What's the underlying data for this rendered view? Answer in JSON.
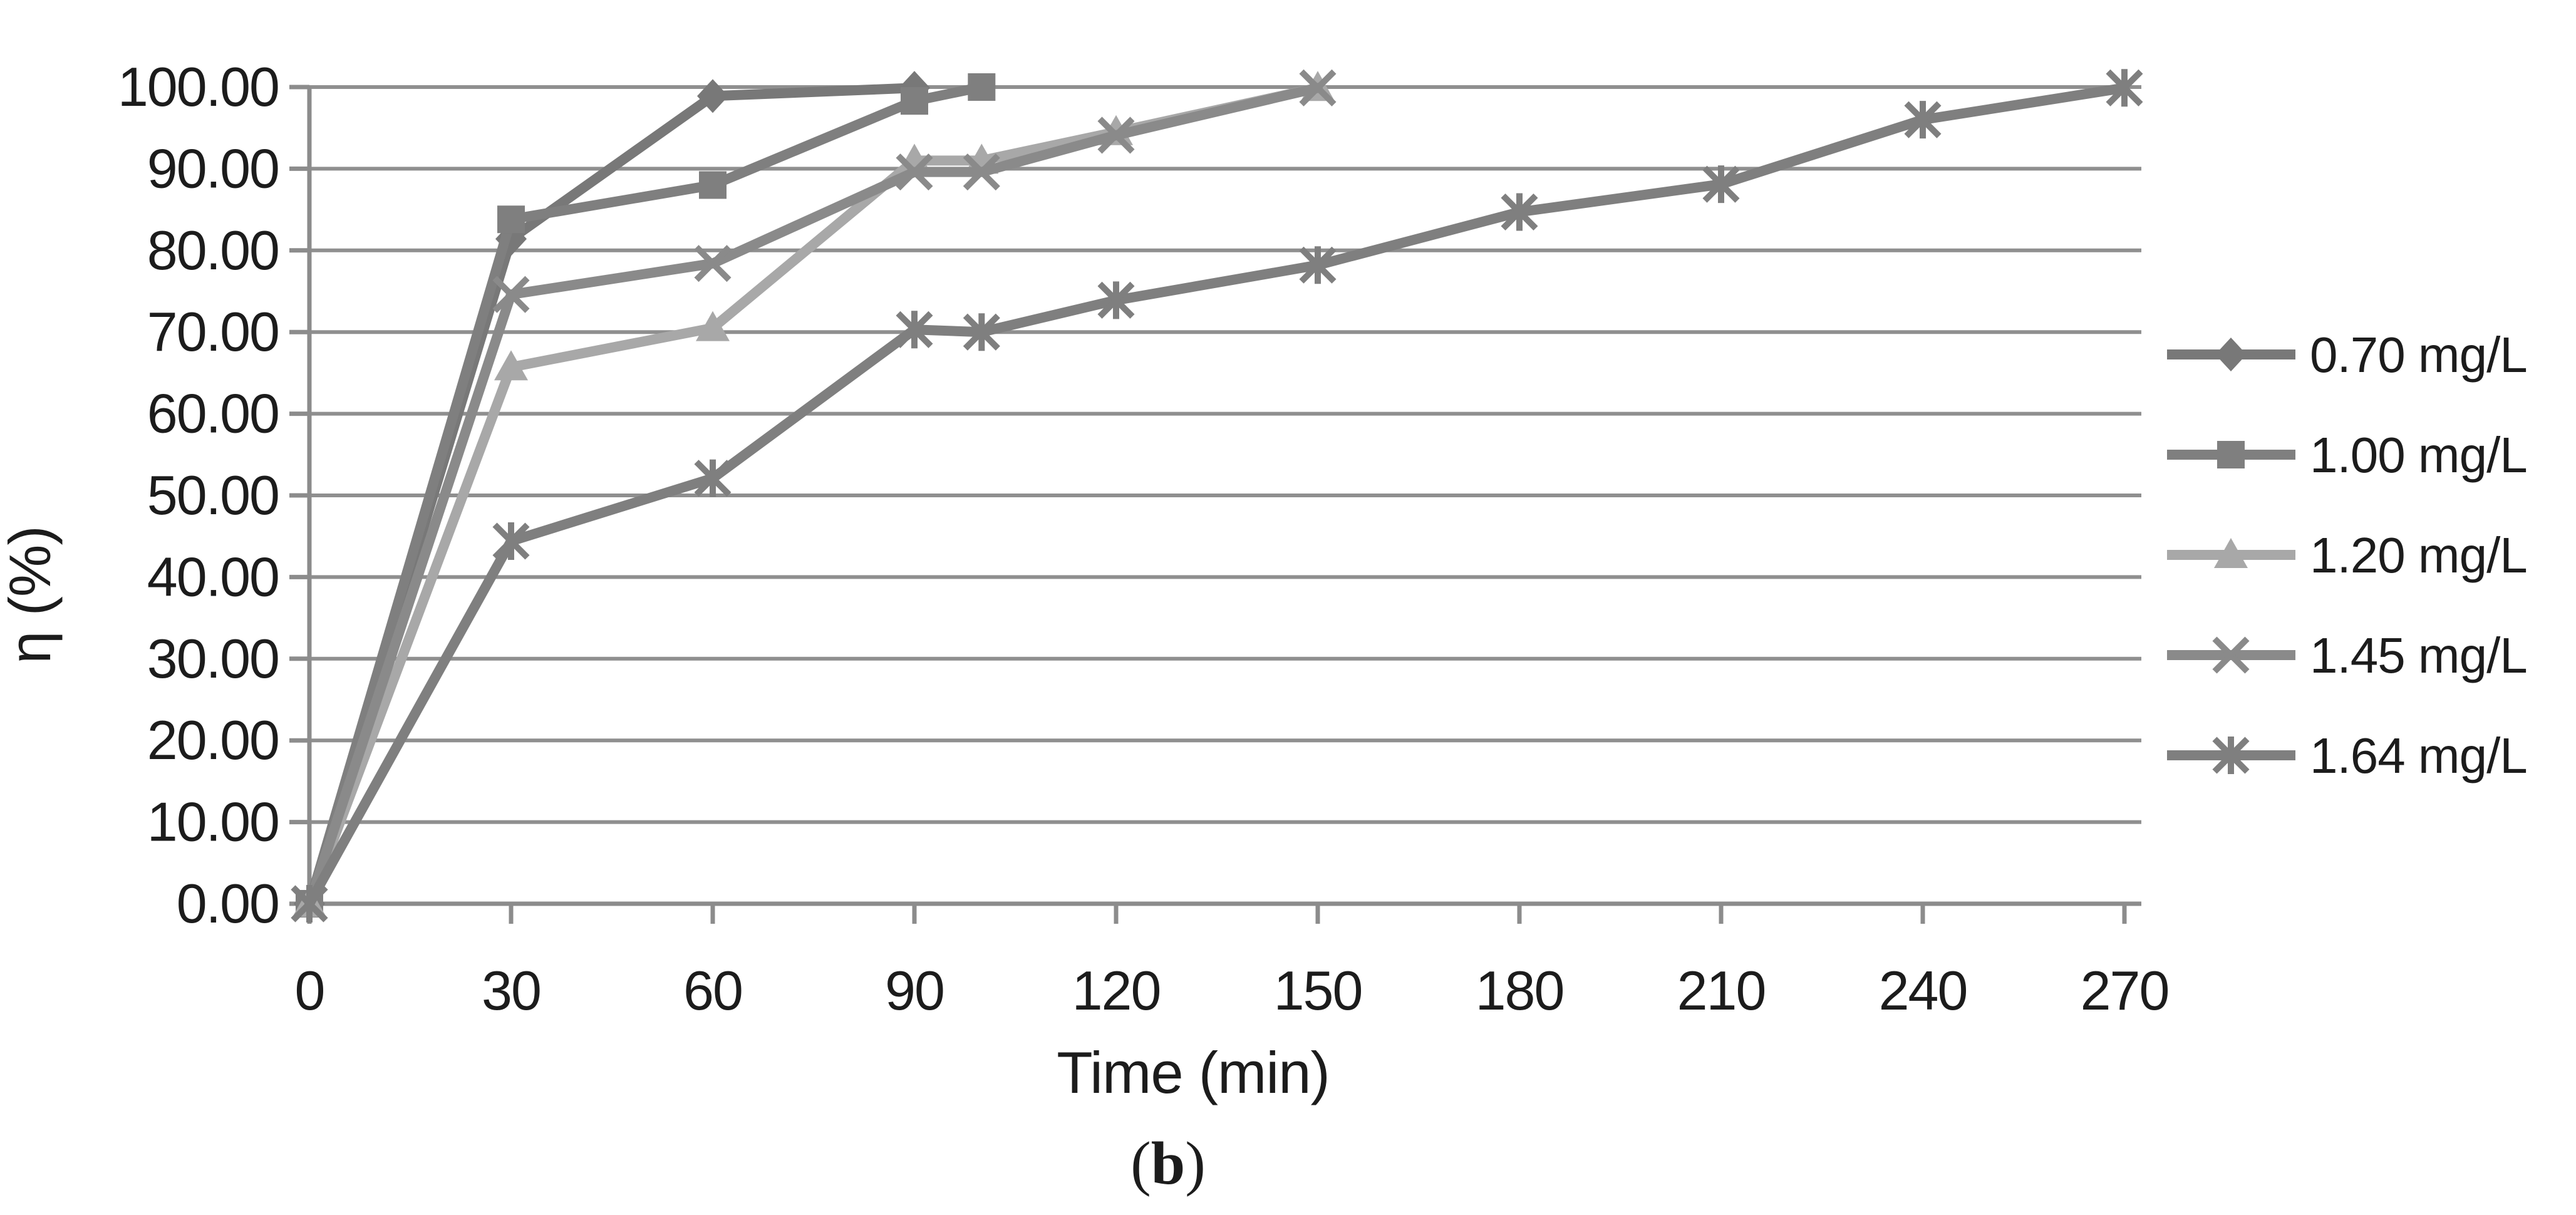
{
  "figure": {
    "caption": {
      "open": "(",
      "letter": "b",
      "close": ")"
    }
  },
  "chart_data": {
    "type": "line",
    "title": "",
    "xlabel": "Time (min)",
    "ylabel": "η (%)",
    "x_axis": {
      "min": 0,
      "max": 270,
      "tick_values": [
        0,
        30,
        60,
        90,
        120,
        150,
        180,
        210,
        240,
        270
      ],
      "tick_labels": [
        "0",
        "30",
        "60",
        "90",
        "120",
        "150",
        "180",
        "210",
        "240",
        "270"
      ]
    },
    "y_axis": {
      "min": 0,
      "max": 100,
      "step": 10,
      "tick_labels": [
        "0.00",
        "10.00",
        "20.00",
        "30.00",
        "40.00",
        "50.00",
        "60.00",
        "70.00",
        "80.00",
        "90.00",
        "100.00"
      ]
    },
    "grid": "horizontal",
    "legend_position": "right",
    "series": [
      {
        "name": "0.70 mg/L",
        "marker": "diamond",
        "color": "#787878",
        "x": [
          0,
          30,
          60,
          90
        ],
        "y": [
          0.0,
          81.4,
          98.9,
          99.9
        ]
      },
      {
        "name": "1.00 mg/L",
        "marker": "square",
        "color": "#7f7f7f",
        "x": [
          0,
          30,
          60,
          90,
          100
        ],
        "y": [
          0.0,
          83.8,
          88.0,
          98.3,
          100.0
        ]
      },
      {
        "name": "1.20 mg/L",
        "marker": "triangle",
        "color": "#a8a8a8",
        "x": [
          0,
          30,
          60,
          90,
          100,
          120,
          150
        ],
        "y": [
          0.0,
          65.7,
          70.5,
          91.0,
          91.0,
          94.5,
          99.9
        ]
      },
      {
        "name": "1.45 mg/L",
        "marker": "x",
        "color": "#8a8a8a",
        "x": [
          0,
          30,
          60,
          90,
          100,
          120,
          150
        ],
        "y": [
          0.0,
          74.6,
          78.4,
          89.6,
          89.6,
          94.1,
          99.9
        ]
      },
      {
        "name": "1.64 mg/L",
        "marker": "star",
        "color": "#7f7f7f",
        "x": [
          0,
          30,
          60,
          90,
          100,
          120,
          150,
          180,
          210,
          240,
          270
        ],
        "y": [
          0.0,
          44.4,
          52.1,
          70.3,
          70.0,
          73.9,
          78.2,
          84.7,
          88.1,
          96.0,
          99.9
        ]
      }
    ],
    "colors": {
      "gridline": "#8f8f8f",
      "axis": "#8c8c8c",
      "text": "#1c1c1c"
    }
  }
}
